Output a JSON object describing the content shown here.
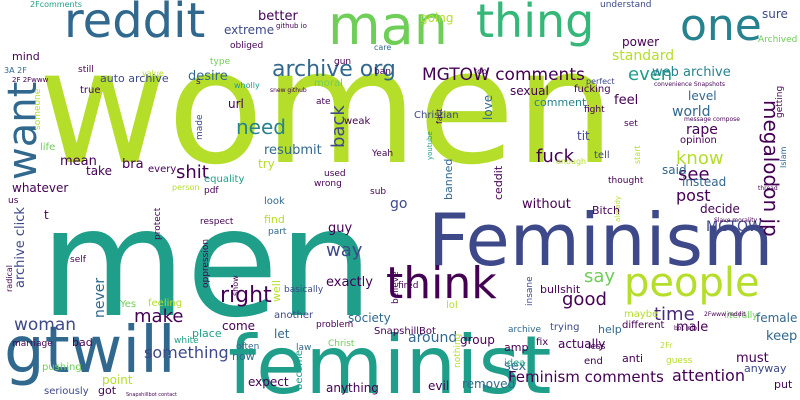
{
  "palette": {
    "lime": "#b5de2b",
    "teal": "#1f9e89",
    "navy": "#3e4989",
    "purple": "#440154",
    "blue": "#31688e",
    "green": "#35b779",
    "yellowgreen": "#6ece58",
    "darkblue": "#26828e",
    "indigo": "#482878"
  },
  "words": [
    "women",
    "men",
    "Feminism",
    "feminist",
    "will",
    "gt",
    "reddit",
    "man",
    "thing",
    "one",
    "want",
    "think",
    "people",
    "archive org",
    "MGTOW comments",
    "megalodon jp",
    "need",
    "know",
    "right",
    "say",
    "good",
    "time",
    "make",
    "way",
    "see",
    "fuck",
    "even",
    "standard",
    "shit",
    "back",
    "post",
    "woman",
    "something",
    "attention",
    "Feminism comments",
    "archive click",
    "web archive",
    "auto archive",
    "desire",
    "better",
    "extreme",
    "going",
    "understand",
    "sure",
    "power",
    "Archived",
    "feel",
    "level",
    "world",
    "rape",
    "tit",
    "love",
    "comment",
    "fucking",
    "sexual",
    "MGTOW",
    "must",
    "anyway",
    "day",
    "male",
    "female",
    "keep",
    "exactly",
    "bullshit",
    "group",
    "actually",
    "society",
    "around",
    "never",
    "removed",
    "evil",
    "anything",
    "expect",
    "come",
    "let",
    "now",
    "really",
    "white",
    "often",
    "Christ",
    "law",
    "become",
    "got",
    "point",
    "bad",
    "marriage",
    "pushing",
    "seriously",
    "Yes",
    "feeling",
    "place",
    "another",
    "problem",
    "well",
    "basically",
    "guy",
    "find",
    "part",
    "look",
    "every",
    "used",
    "wrong",
    "sub",
    "banned",
    "ceddit",
    "without",
    "go",
    "decide",
    "said",
    "help",
    "instead",
    "Bitch",
    "different",
    "fix",
    "trying",
    "amp",
    "sex",
    "idea",
    "less",
    "end",
    "anti",
    "guess",
    "put",
    "literally",
    "maybe",
    "lol",
    "insane",
    "believe",
    "fired",
    "nothing",
    "SnapshillBot",
    "archive",
    "resubmit",
    "try",
    "url",
    "bra",
    "mean",
    "take",
    "whatever",
    "us",
    "mind",
    "3A 2F",
    "still",
    "true",
    "life",
    "someone",
    "value",
    "type",
    "ate",
    "moral",
    "made",
    "wholly",
    "equality",
    "pdf",
    "person",
    "protect",
    "respect",
    "self",
    "radical",
    "oppression",
    "show",
    "gun",
    "ban",
    "weak",
    "Yeah",
    "Christian",
    "opinion",
    "fight",
    "perfect",
    "set",
    "start",
    "enough",
    "thought",
    "Islam",
    "getting",
    "tell",
    "obliged",
    "care",
    "2Fcomments",
    "2F 2Fwww",
    "github io",
    "snew github",
    "convenience Snapshots",
    "message compose",
    "Slave morality",
    "thread",
    "2Fwww reddit",
    "bot Info",
    "2Fr",
    "top",
    "fact",
    "youtube",
    "already",
    "Snapshillbot contact",
    "s",
    "t"
  ]
}
